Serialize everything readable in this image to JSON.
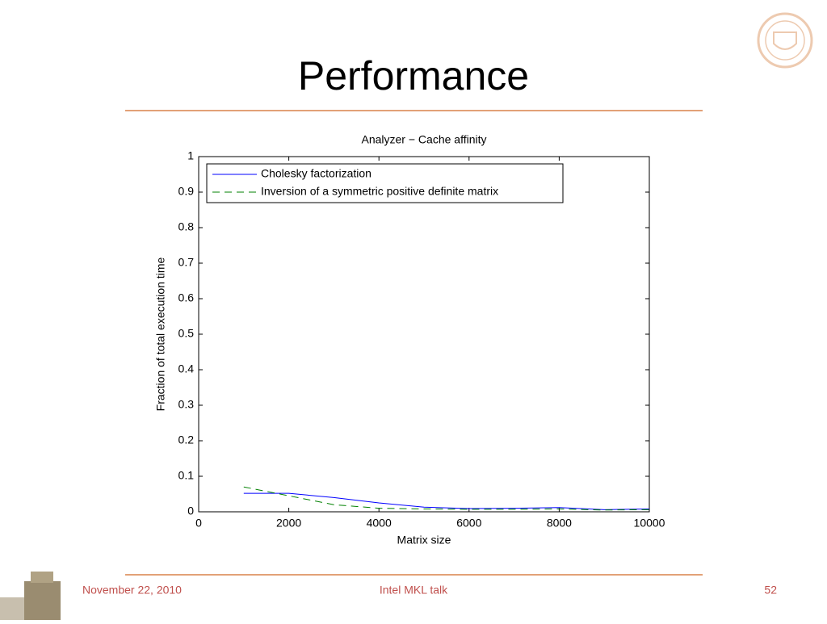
{
  "slide": {
    "title": "Performance"
  },
  "footer": {
    "date": "November 22, 2010",
    "center": "Intel MKL talk",
    "page": "52"
  },
  "chart_data": {
    "type": "line",
    "title": "Analyzer − Cache affinity",
    "x_label": "Matrix size",
    "y_label": "Fraction of total execution time",
    "x": [
      1000,
      2000,
      3000,
      4000,
      5000,
      6000,
      7000,
      8000,
      9000,
      10000
    ],
    "series": [
      {
        "name": "Cholesky factorization",
        "color": "#0000ff",
        "line_style": "solid",
        "values": [
          0.052,
          0.052,
          0.04,
          0.025,
          0.013,
          0.009,
          0.01,
          0.012,
          0.006,
          0.008
        ]
      },
      {
        "name": "Inversion of a symmetric positive definite matrix",
        "color": "#008000",
        "line_style": "dashed",
        "values": [
          0.07,
          0.045,
          0.02,
          0.01,
          0.008,
          0.007,
          0.007,
          0.008,
          0.005,
          0.006
        ]
      }
    ],
    "xlim": [
      0,
      10000
    ],
    "xticks": [
      0,
      2000,
      4000,
      6000,
      8000,
      10000
    ],
    "ylim": [
      0,
      1
    ],
    "yticks": [
      0,
      0.1,
      0.2,
      0.3,
      0.4,
      0.5,
      0.6,
      0.7,
      0.8,
      0.9,
      1
    ],
    "grid": false,
    "legend": "upper-left"
  }
}
